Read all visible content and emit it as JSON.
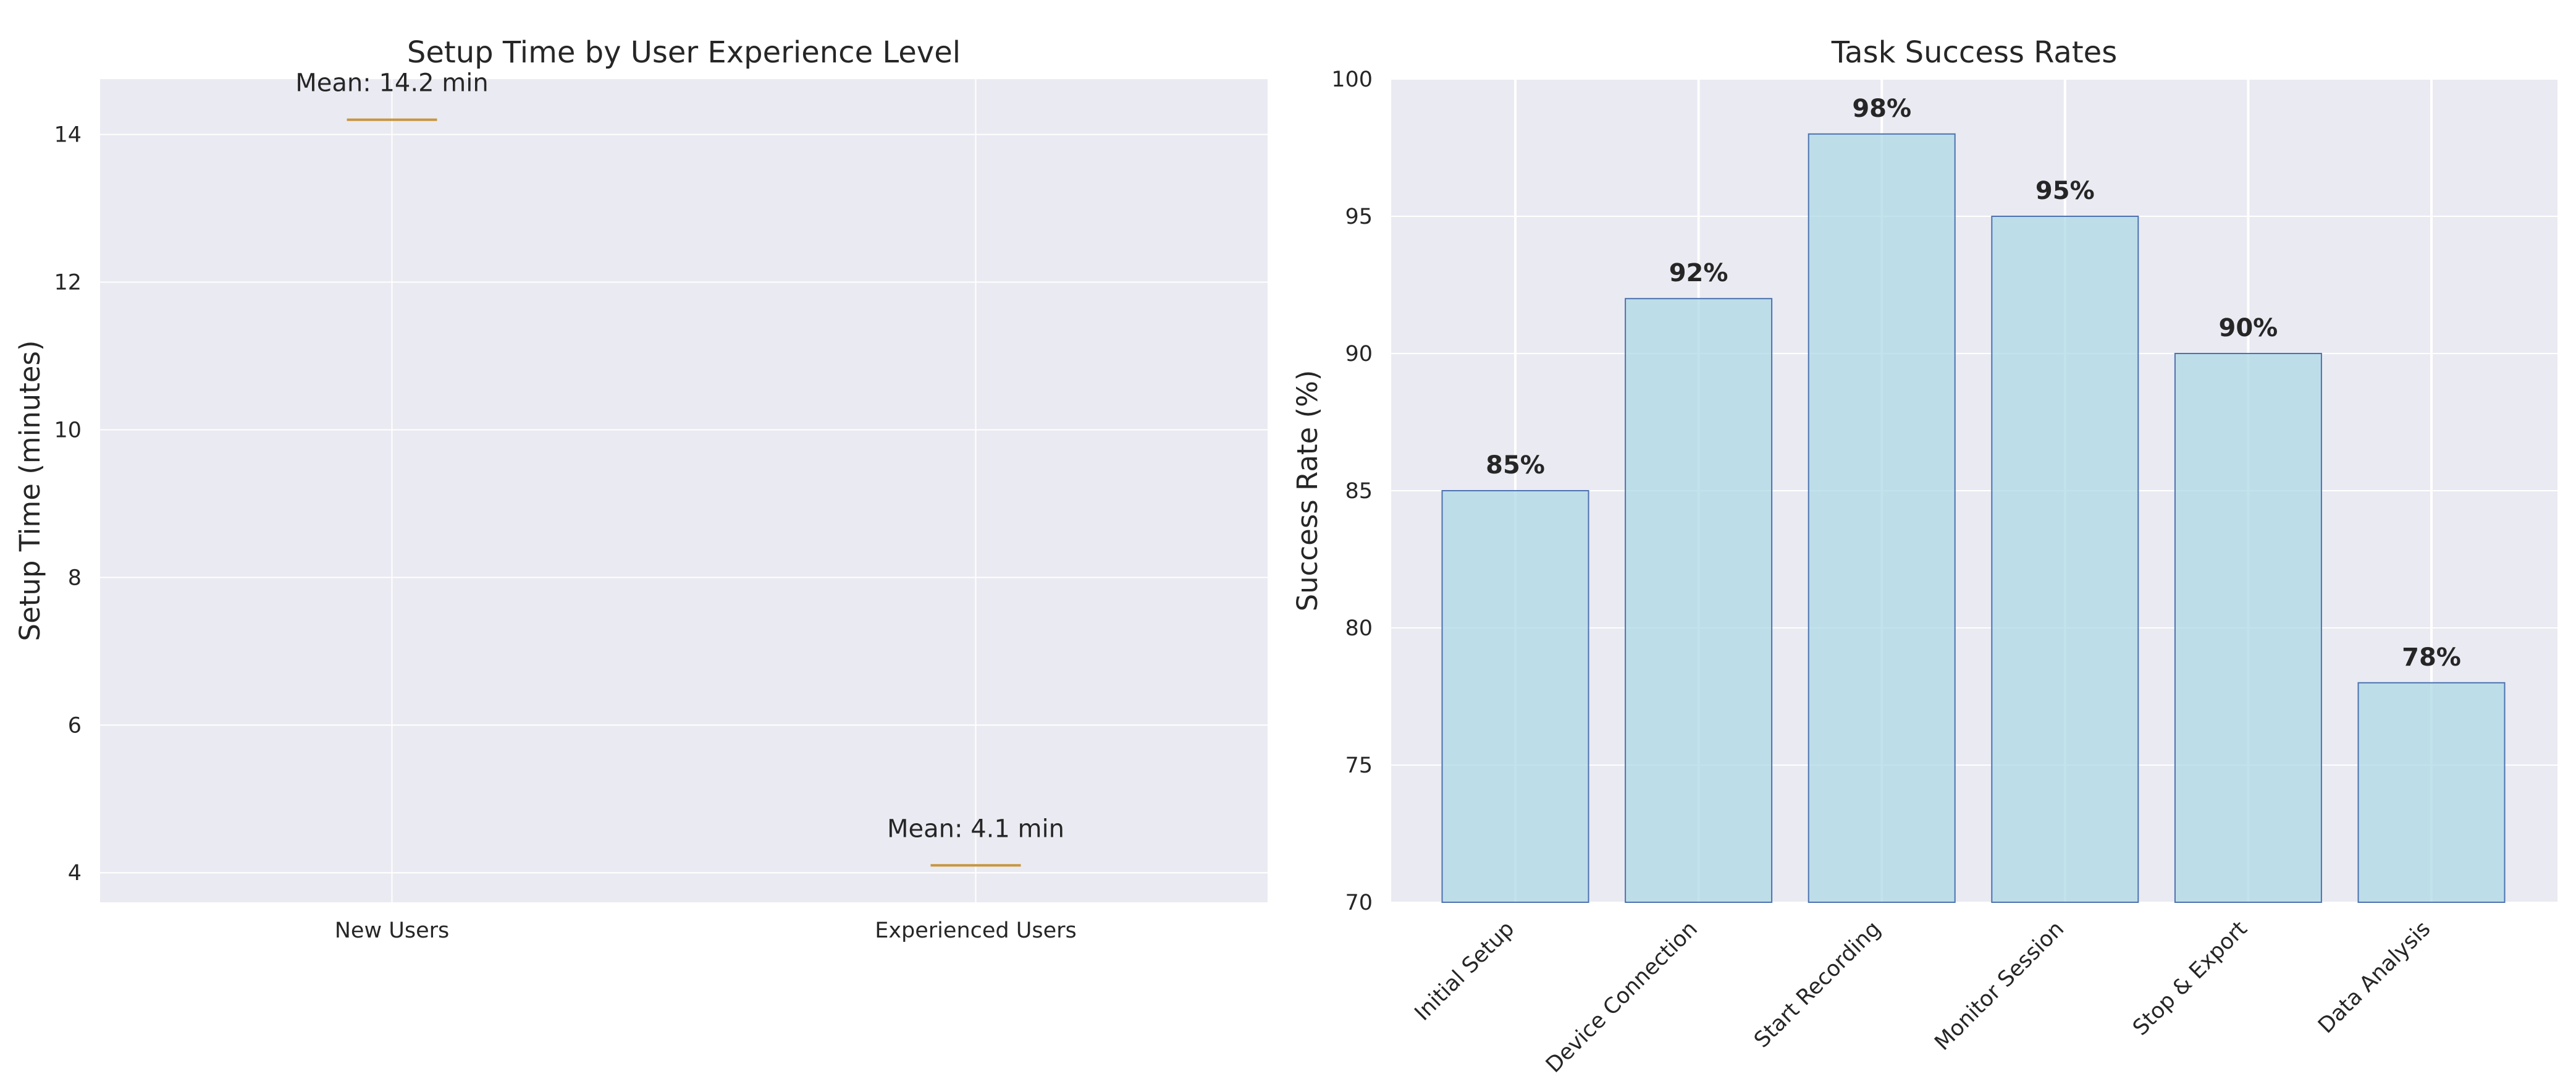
{
  "chart_data": [
    {
      "type": "box",
      "title": "Setup Time by User Experience Level",
      "xlabel": "",
      "ylabel": "Setup Time (minutes)",
      "categories": [
        "New Users",
        "Experienced Users"
      ],
      "values": [
        14.2,
        4.1
      ],
      "annotations": [
        "Mean: 14.2 min",
        "Mean: 4.1 min"
      ],
      "ylim": [
        3.6,
        14.75
      ],
      "yticks": [
        "4",
        "6",
        "8",
        "10",
        "12",
        "14"
      ],
      "ytick_values": [
        4,
        6,
        8,
        10,
        12,
        14
      ],
      "grid": true,
      "line_color": "#c8963e"
    },
    {
      "type": "bar",
      "title": "Task Success Rates",
      "xlabel": "",
      "ylabel": "Success Rate (%)",
      "categories": [
        "Initial Setup",
        "Device Connection",
        "Start Recording",
        "Monitor Session",
        "Stop & Export",
        "Data Analysis"
      ],
      "values": [
        85,
        92,
        98,
        95,
        90,
        78
      ],
      "labels": [
        "85%",
        "92%",
        "98%",
        "95%",
        "90%",
        "78%"
      ],
      "ylim": [
        70,
        100
      ],
      "yticks": [
        "70",
        "75",
        "80",
        "85",
        "90",
        "95",
        "100"
      ],
      "ytick_values": [
        70,
        75,
        80,
        85,
        90,
        95,
        100
      ],
      "grid": true,
      "bar_color": "#add8e6",
      "edge_color": "#4c72b0"
    }
  ]
}
